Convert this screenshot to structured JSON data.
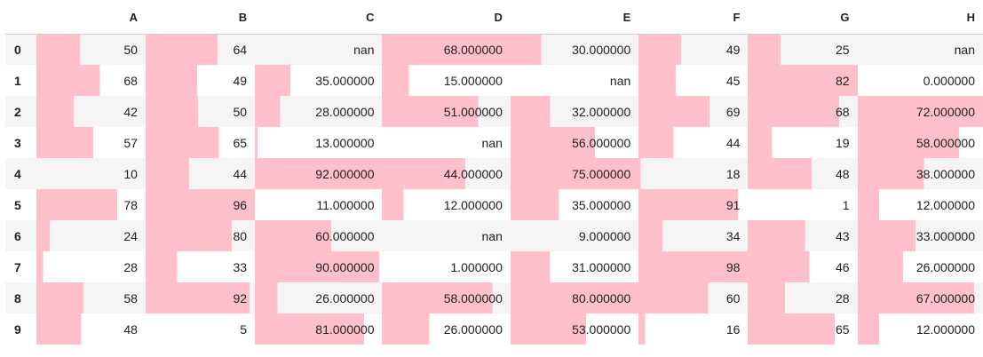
{
  "table": {
    "columns": [
      "A",
      "B",
      "C",
      "D",
      "E",
      "F",
      "G",
      "H"
    ],
    "index": [
      "0",
      "1",
      "2",
      "3",
      "4",
      "5",
      "6",
      "7",
      "8",
      "9"
    ],
    "bar_color": "#ffc0cb",
    "rows": [
      [
        "50",
        "64",
        "nan",
        "68.000000",
        "30.000000",
        "49",
        "25",
        "nan"
      ],
      [
        "68",
        "49",
        "35.000000",
        "15.000000",
        "nan",
        "45",
        "82",
        "0.000000"
      ],
      [
        "42",
        "50",
        "28.000000",
        "51.000000",
        "32.000000",
        "69",
        "68",
        "72.000000"
      ],
      [
        "57",
        "65",
        "13.000000",
        "nan",
        "56.000000",
        "44",
        "19",
        "58.000000"
      ],
      [
        "10",
        "44",
        "92.000000",
        "44.000000",
        "75.000000",
        "18",
        "48",
        "38.000000"
      ],
      [
        "78",
        "96",
        "11.000000",
        "12.000000",
        "35.000000",
        "91",
        "1",
        "12.000000"
      ],
      [
        "24",
        "80",
        "60.000000",
        "nan",
        "9.000000",
        "34",
        "43",
        "33.000000"
      ],
      [
        "28",
        "33",
        "90.000000",
        "1.000000",
        "31.000000",
        "98",
        "46",
        "26.000000"
      ],
      [
        "58",
        "92",
        "26.000000",
        "58.000000",
        "80.000000",
        "60",
        "28",
        "67.000000"
      ],
      [
        "48",
        "5",
        "81.000000",
        "26.000000",
        "53.000000",
        "16",
        "65",
        "12.000000"
      ]
    ],
    "bar_fractions": [
      [
        0.4,
        0.66,
        null,
        1.0,
        0.24,
        0.39,
        0.3,
        null
      ],
      [
        0.58,
        0.47,
        0.28,
        0.21,
        null,
        0.34,
        1.0,
        0.0
      ],
      [
        0.34,
        0.48,
        0.2,
        0.75,
        0.31,
        0.65,
        0.83,
        1.0
      ],
      [
        0.52,
        0.67,
        0.02,
        null,
        0.66,
        0.32,
        0.22,
        0.81
      ],
      [
        0.0,
        0.4,
        1.0,
        0.65,
        1.0,
        0.02,
        0.58,
        0.53
      ],
      [
        0.74,
        1.0,
        0.0,
        0.17,
        0.38,
        0.91,
        0.0,
        0.17
      ],
      [
        0.12,
        0.79,
        0.6,
        null,
        0.0,
        0.22,
        0.52,
        0.46
      ],
      [
        0.06,
        0.29,
        0.98,
        0.0,
        0.31,
        1.0,
        0.56,
        0.36
      ],
      [
        0.43,
        0.95,
        0.18,
        0.86,
        1.0,
        0.64,
        0.34,
        0.93
      ],
      [
        0.41,
        0.0,
        0.86,
        0.37,
        0.59,
        0.06,
        0.79,
        0.17
      ]
    ]
  }
}
